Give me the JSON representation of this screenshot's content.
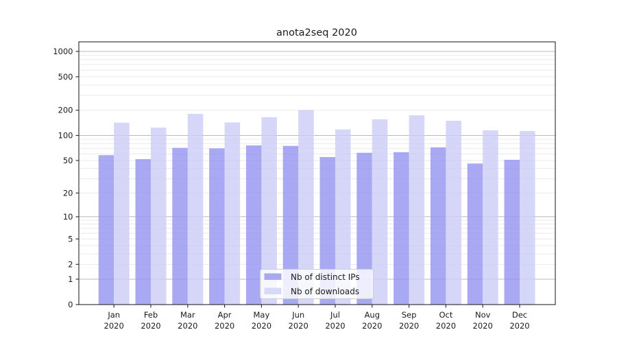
{
  "chart_data": {
    "type": "bar",
    "title": "anota2seq 2020",
    "categories": [
      "Jan 2020",
      "Feb 2020",
      "Mar 2020",
      "Apr 2020",
      "May 2020",
      "Jun 2020",
      "Jul 2020",
      "Aug 2020",
      "Sep 2020",
      "Oct 2020",
      "Nov 2020",
      "Dec 2020"
    ],
    "x_tick_months": [
      "Jan",
      "Feb",
      "Mar",
      "Apr",
      "May",
      "Jun",
      "Jul",
      "Aug",
      "Sep",
      "Oct",
      "Nov",
      "Dec"
    ],
    "x_tick_year": "2020",
    "series": [
      {
        "name": "Nb of distinct IPs",
        "color": "#a9a9f2",
        "fill_rgba": "rgba(150,150,240,0.82)",
        "values": [
          58,
          52,
          71,
          70,
          76,
          75,
          55,
          62,
          63,
          72,
          46,
          51
        ]
      },
      {
        "name": "Nb of downloads",
        "color": "#d8d8f8",
        "fill_rgba": "rgba(205,205,246,0.82)",
        "values": [
          142,
          124,
          181,
          143,
          165,
          201,
          118,
          156,
          174,
          150,
          115,
          113
        ]
      }
    ],
    "yticks": [
      0,
      1,
      2,
      5,
      10,
      20,
      50,
      100,
      200,
      500,
      1000
    ],
    "y_scale": "log10(value+1)",
    "ylim": [
      0,
      1300
    ],
    "grid": true,
    "legend_position": "lower center"
  },
  "colors": {
    "axis": "#262626",
    "grid_major": "#b8b8b8",
    "grid_minor": "#e9e9e9",
    "legend_border": "#cccccc",
    "legend_bg": "rgba(255,255,255,0.8)",
    "background": "#ffffff"
  }
}
